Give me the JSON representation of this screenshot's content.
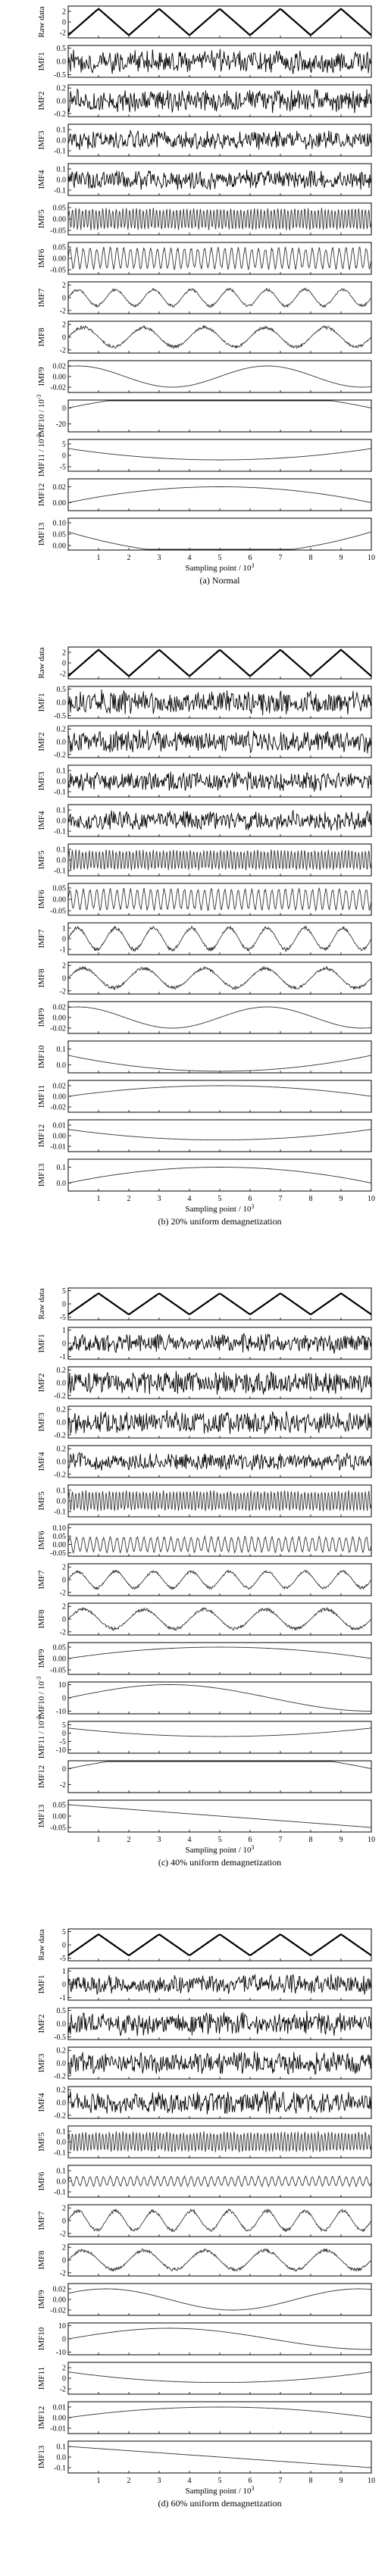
{
  "chart_data": [
    {
      "type": "line",
      "caption": "(a) Normal",
      "xlabel": "Sampling point / 10",
      "xlabel_exp": "3",
      "xlim": [
        0,
        10
      ],
      "xticks": [
        "1",
        "2",
        "3",
        "4",
        "5",
        "6",
        "7",
        "8",
        "9",
        "10"
      ],
      "panels": [
        {
          "label": "Raw data",
          "kind": "tri",
          "amp": 2.5,
          "cycles": 5,
          "yticks": [
            "2",
            "0",
            "-2"
          ],
          "ylim": [
            -3,
            3
          ]
        },
        {
          "label": "IMF1",
          "kind": "noise",
          "amp": 0.5,
          "yticks": [
            "0.5",
            "0.0",
            "-0.5"
          ],
          "ylim": [
            -0.6,
            0.6
          ]
        },
        {
          "label": "IMF2",
          "kind": "noise",
          "amp": 0.2,
          "yticks": [
            "0.2",
            "0.0",
            "-0.2"
          ],
          "ylim": [
            -0.25,
            0.25
          ]
        },
        {
          "label": "IMF3",
          "kind": "noise",
          "amp": 0.1,
          "yticks": [
            "0.1",
            "0.0",
            "-0.1"
          ],
          "ylim": [
            -0.15,
            0.15
          ]
        },
        {
          "label": "IMF4",
          "kind": "noise",
          "amp": 0.1,
          "yticks": [
            "0.1",
            "0.0",
            "-0.1"
          ],
          "ylim": [
            -0.15,
            0.15
          ]
        },
        {
          "label": "IMF5",
          "kind": "osc",
          "amp": 0.05,
          "cycles": 90,
          "yticks": [
            "0.05",
            "0.00",
            "-0.05"
          ],
          "ylim": [
            -0.07,
            0.07
          ]
        },
        {
          "label": "IMF6",
          "kind": "osc",
          "amp": 0.05,
          "cycles": 45,
          "yticks": [
            "0.05",
            "0.00",
            "-0.05"
          ],
          "ylim": [
            -0.07,
            0.07
          ]
        },
        {
          "label": "IMF7",
          "kind": "osc",
          "amp": 1.5,
          "cycles": 8,
          "yticks": [
            "2",
            "0",
            "-2"
          ],
          "ylim": [
            -2.5,
            2.5
          ]
        },
        {
          "label": "IMF8",
          "kind": "osc",
          "amp": 1.8,
          "cycles": 5,
          "yticks": [
            "2",
            "0",
            "-2"
          ],
          "ylim": [
            -2.5,
            2.5
          ]
        },
        {
          "label": "IMF9",
          "kind": "sine",
          "amp": 0.02,
          "cycles": 1.6,
          "phase": 0.2,
          "yticks": [
            "0.02",
            "0.00",
            "-0.02"
          ],
          "ylim": [
            -0.03,
            0.03
          ]
        },
        {
          "label": "IMF10 / 10",
          "label_exp": "-3",
          "kind": "arch",
          "amp": 20,
          "yticks": [
            "0",
            "-20"
          ],
          "ylim": [
            -30,
            10
          ]
        },
        {
          "label": "IMF11 / 10",
          "label_exp": "-3",
          "kind": "bowl",
          "amp": 5,
          "yticks": [
            "5",
            "0",
            "-5"
          ],
          "ylim": [
            -7,
            7
          ]
        },
        {
          "label": "IMF12",
          "kind": "arch",
          "amp": 0.02,
          "yticks": [
            "0.02",
            "0.00"
          ],
          "ylim": [
            -0.01,
            0.03
          ]
        },
        {
          "label": "IMF13",
          "kind": "bowl",
          "amp": 0.1,
          "yticks": [
            "0.10",
            "0.05",
            "0.00"
          ],
          "ylim": [
            -0.02,
            0.12
          ]
        }
      ]
    },
    {
      "type": "line",
      "caption": "(b) 20% uniform demagnetization",
      "xlabel": "Sampling point / 10",
      "xlabel_exp": "3",
      "xlim": [
        0,
        10
      ],
      "xticks": [
        "1",
        "2",
        "3",
        "4",
        "5",
        "6",
        "7",
        "8",
        "9",
        "10"
      ],
      "panels": [
        {
          "label": "Raw data",
          "kind": "tri",
          "amp": 2.5,
          "cycles": 5,
          "yticks": [
            "2",
            "0",
            "-2"
          ],
          "ylim": [
            -3,
            3
          ]
        },
        {
          "label": "IMF1",
          "kind": "noise",
          "amp": 0.5,
          "yticks": [
            "0.5",
            "0.0",
            "-0.5"
          ],
          "ylim": [
            -0.6,
            0.6
          ]
        },
        {
          "label": "IMF2",
          "kind": "noise",
          "amp": 0.2,
          "yticks": [
            "0.2",
            "0.0",
            "-0.2"
          ],
          "ylim": [
            -0.25,
            0.25
          ]
        },
        {
          "label": "IMF3",
          "kind": "noise",
          "amp": 0.1,
          "yticks": [
            "0.1",
            "0.0",
            "-0.1"
          ],
          "ylim": [
            -0.15,
            0.15
          ]
        },
        {
          "label": "IMF4",
          "kind": "noise",
          "amp": 0.1,
          "yticks": [
            "0.1",
            "0.0",
            "-0.1"
          ],
          "ylim": [
            -0.15,
            0.15
          ]
        },
        {
          "label": "IMF5",
          "kind": "osc",
          "amp": 0.1,
          "cycles": 90,
          "yticks": [
            "0.1",
            "0.0",
            "-0.1"
          ],
          "ylim": [
            -0.15,
            0.15
          ]
        },
        {
          "label": "IMF6",
          "kind": "osc",
          "amp": 0.05,
          "cycles": 45,
          "yticks": [
            "0.05",
            "0.00",
            "-0.05"
          ],
          "ylim": [
            -0.07,
            0.07
          ]
        },
        {
          "label": "IMF7",
          "kind": "osc",
          "amp": 1.2,
          "cycles": 8,
          "yticks": [
            "1",
            "0",
            "-1"
          ],
          "ylim": [
            -1.5,
            1.5
          ]
        },
        {
          "label": "IMF8",
          "kind": "osc",
          "amp": 1.8,
          "cycles": 5,
          "yticks": [
            "2",
            "0",
            "-2"
          ],
          "ylim": [
            -2.5,
            2.5
          ]
        },
        {
          "label": "IMF9",
          "kind": "sine",
          "amp": 0.02,
          "cycles": 1.6,
          "phase": 0.2,
          "yticks": [
            "0.02",
            "0.00",
            "-0.02"
          ],
          "ylim": [
            -0.03,
            0.03
          ]
        },
        {
          "label": "IMF10",
          "kind": "bowl",
          "amp": 0.1,
          "yticks": [
            "0.1",
            "0.0"
          ],
          "ylim": [
            -0.05,
            0.15
          ]
        },
        {
          "label": "IMF11",
          "kind": "arch",
          "amp": 0.02,
          "yticks": [
            "0.02",
            "0.00",
            "-0.02"
          ],
          "ylim": [
            -0.03,
            0.03
          ]
        },
        {
          "label": "IMF12",
          "kind": "bowl",
          "amp": 0.01,
          "yticks": [
            "0.01",
            "0.00",
            "-0.01"
          ],
          "ylim": [
            -0.015,
            0.015
          ]
        },
        {
          "label": "IMF13",
          "kind": "arch",
          "amp": 0.1,
          "yticks": [
            "0.1",
            "0.0"
          ],
          "ylim": [
            -0.05,
            0.15
          ]
        }
      ]
    },
    {
      "type": "line",
      "caption": "(c) 40% uniform demagnetization",
      "xlabel": "Sampling point / 10",
      "xlabel_exp": "3",
      "xlim": [
        0,
        10
      ],
      "xticks": [
        "1",
        "2",
        "3",
        "4",
        "5",
        "6",
        "7",
        "8",
        "9",
        "10"
      ],
      "panels": [
        {
          "label": "Raw data",
          "kind": "tri",
          "amp": 4,
          "cycles": 5,
          "yticks": [
            "5",
            "0",
            "-5"
          ],
          "ylim": [
            -6,
            6
          ]
        },
        {
          "label": "IMF1",
          "kind": "noise",
          "amp": 0.8,
          "yticks": [
            "1",
            "0",
            "-1"
          ],
          "ylim": [
            -1.2,
            1.2
          ]
        },
        {
          "label": "IMF2",
          "kind": "noise",
          "amp": 0.2,
          "yticks": [
            "0.2",
            "0.0",
            "-0.2"
          ],
          "ylim": [
            -0.25,
            0.25
          ]
        },
        {
          "label": "IMF3",
          "kind": "noise",
          "amp": 0.2,
          "yticks": [
            "0.2",
            "0.0",
            "-0.2"
          ],
          "ylim": [
            -0.25,
            0.25
          ]
        },
        {
          "label": "IMF4",
          "kind": "noise",
          "amp": 0.15,
          "yticks": [
            "0.2",
            "0.0",
            "-0.2"
          ],
          "ylim": [
            -0.25,
            0.25
          ]
        },
        {
          "label": "IMF5",
          "kind": "osc",
          "amp": 0.1,
          "cycles": 90,
          "yticks": [
            "0.1",
            "0.0",
            "-0.1"
          ],
          "ylim": [
            -0.15,
            0.15
          ]
        },
        {
          "label": "IMF6",
          "kind": "osc",
          "amp": 0.05,
          "cycles": 45,
          "yticks": [
            "0.10",
            "0.05",
            "0.00",
            "-0.05"
          ],
          "ylim": [
            -0.07,
            0.12
          ]
        },
        {
          "label": "IMF7",
          "kind": "osc",
          "amp": 1.5,
          "cycles": 8,
          "yticks": [
            "2",
            "0",
            "-2"
          ],
          "ylim": [
            -2.5,
            2.5
          ]
        },
        {
          "label": "IMF8",
          "kind": "osc",
          "amp": 1.8,
          "cycles": 5,
          "yticks": [
            "2",
            "0",
            "-2"
          ],
          "ylim": [
            -2.5,
            2.5
          ]
        },
        {
          "label": "IMF9",
          "kind": "arch",
          "amp": 0.05,
          "yticks": [
            "0.05",
            "0.00",
            "-0.05"
          ],
          "ylim": [
            -0.07,
            0.07
          ]
        },
        {
          "label": "IMF10 / 10",
          "label_exp": "-3",
          "kind": "sine",
          "amp": 10,
          "cycles": 0.75,
          "phase": 0.0,
          "yticks": [
            "10",
            "0",
            "-10"
          ],
          "ylim": [
            -12,
            12
          ]
        },
        {
          "label": "IMF11 / 10",
          "label_exp": "-3",
          "kind": "bowl",
          "amp": 5,
          "yticks": [
            "5",
            "0",
            "-5",
            "-10"
          ],
          "ylim": [
            -12,
            7
          ]
        },
        {
          "label": "IMF12",
          "kind": "arch",
          "amp": 2,
          "yticks": [
            "0",
            "-2"
          ],
          "ylim": [
            -3,
            1
          ]
        },
        {
          "label": "IMF13",
          "kind": "ramp",
          "amp": 0.05,
          "yticks": [
            "0.05",
            "0.00",
            "-0.05"
          ],
          "ylim": [
            -0.07,
            0.07
          ]
        }
      ]
    },
    {
      "type": "line",
      "caption": "(d) 60% uniform demagnetization",
      "xlabel": "Sampling point / 10",
      "xlabel_exp": "3",
      "xlim": [
        0,
        10
      ],
      "xticks": [
        "1",
        "2",
        "3",
        "4",
        "5",
        "6",
        "7",
        "8",
        "9",
        "10"
      ],
      "panels": [
        {
          "label": "Raw data",
          "kind": "tri",
          "amp": 4,
          "cycles": 5,
          "yticks": [
            "5",
            "0",
            "-5"
          ],
          "ylim": [
            -6,
            6
          ]
        },
        {
          "label": "IMF1",
          "kind": "noise",
          "amp": 0.8,
          "yticks": [
            "1",
            "0",
            "-1"
          ],
          "ylim": [
            -1.2,
            1.2
          ]
        },
        {
          "label": "IMF2",
          "kind": "noise",
          "amp": 0.5,
          "yticks": [
            "0.5",
            "0.0",
            "-0.5"
          ],
          "ylim": [
            -0.6,
            0.6
          ]
        },
        {
          "label": "IMF3",
          "kind": "noise",
          "amp": 0.2,
          "yticks": [
            "0.2",
            "0.0",
            "-0.2"
          ],
          "ylim": [
            -0.25,
            0.25
          ]
        },
        {
          "label": "IMF4",
          "kind": "noise",
          "amp": 0.2,
          "yticks": [
            "0.2",
            "0.0",
            "-0.2"
          ],
          "ylim": [
            -0.25,
            0.25
          ]
        },
        {
          "label": "IMF5",
          "kind": "osc",
          "amp": 0.1,
          "cycles": 90,
          "yticks": [
            "0.1",
            "0.0",
            "-0.1"
          ],
          "ylim": [
            -0.15,
            0.15
          ]
        },
        {
          "label": "IMF6",
          "kind": "osc",
          "amp": 0.05,
          "cycles": 45,
          "yticks": [
            "0.1",
            "0.0",
            "-0.1"
          ],
          "ylim": [
            -0.15,
            0.15
          ]
        },
        {
          "label": "IMF7",
          "kind": "osc",
          "amp": 1.8,
          "cycles": 8,
          "yticks": [
            "2",
            "0",
            "-2"
          ],
          "ylim": [
            -2.5,
            2.5
          ]
        },
        {
          "label": "IMF8",
          "kind": "osc",
          "amp": 1.8,
          "cycles": 5,
          "yticks": [
            "2",
            "0",
            "-2"
          ],
          "ylim": [
            -2.5,
            2.5
          ]
        },
        {
          "label": "IMF9",
          "kind": "sine",
          "amp": 0.02,
          "cycles": 1.2,
          "phase": 0.1,
          "yticks": [
            "0.02",
            "0.00",
            "-0.02"
          ],
          "ylim": [
            -0.03,
            0.03
          ]
        },
        {
          "label": "IMF10",
          "kind": "sine",
          "amp": 8,
          "cycles": 0.75,
          "phase": 0.0,
          "yticks": [
            "10",
            "0",
            "-10"
          ],
          "ylim": [
            -12,
            12
          ]
        },
        {
          "label": "IMF11",
          "kind": "bowl",
          "amp": 2,
          "yticks": [
            "2",
            "0",
            "-2"
          ],
          "ylim": [
            -3,
            3
          ]
        },
        {
          "label": "IMF12",
          "kind": "arch",
          "amp": 0.01,
          "yticks": [
            "0.01",
            "0.00",
            "-0.01"
          ],
          "ylim": [
            -0.015,
            0.015
          ]
        },
        {
          "label": "IMF13",
          "kind": "ramp",
          "amp": 0.1,
          "yticks": [
            "0.1",
            "0.0",
            "-0.1"
          ],
          "ylim": [
            -0.15,
            0.15
          ]
        }
      ]
    }
  ]
}
